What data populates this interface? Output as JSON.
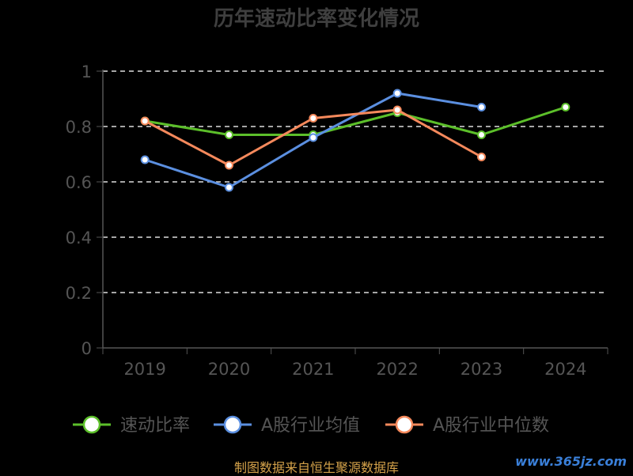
{
  "chart_data": {
    "type": "line",
    "title": "历年速动比率变化情况",
    "categories": [
      "2019",
      "2020",
      "2021",
      "2022",
      "2023",
      "2024"
    ],
    "ylim": [
      0,
      1
    ],
    "yticks": [
      "0",
      "0.2",
      "0.4",
      "0.6",
      "0.8",
      "1"
    ],
    "grid": true,
    "legend_position": "bottom",
    "series": [
      {
        "name": "速动比率",
        "color": "#5cbf2a",
        "values": [
          0.82,
          0.77,
          0.77,
          0.85,
          0.77,
          0.87
        ]
      },
      {
        "name": "A股行业均值",
        "color": "#5b8fe0",
        "values": [
          0.68,
          0.58,
          0.76,
          0.92,
          0.87,
          null
        ]
      },
      {
        "name": "A股行业中位数",
        "color": "#f5895c",
        "values": [
          0.82,
          0.66,
          0.83,
          0.86,
          0.69,
          null
        ]
      }
    ]
  },
  "footer": {
    "source": "制图数据来自恒生聚源数据库",
    "watermark": "www.365jz.com"
  }
}
